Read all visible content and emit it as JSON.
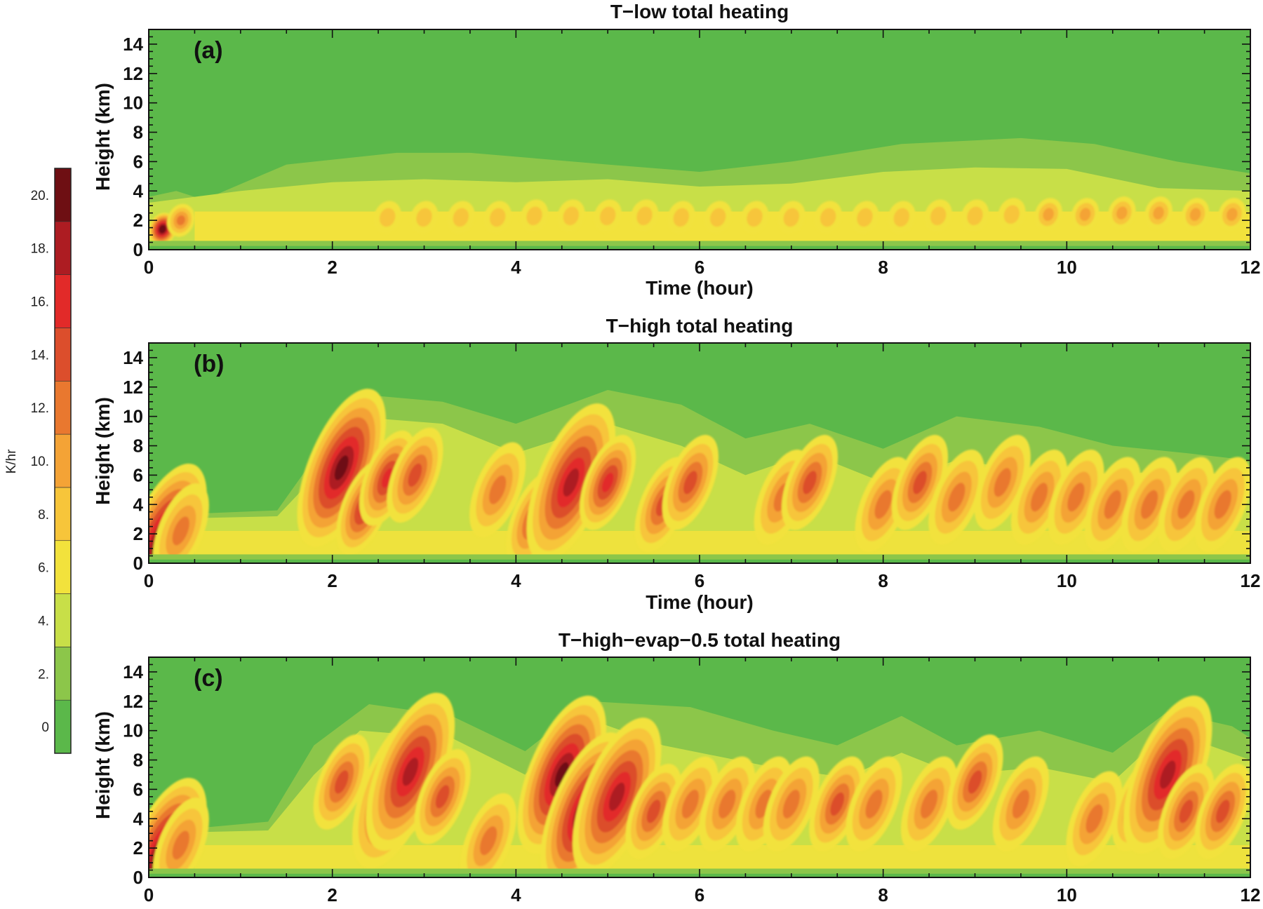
{
  "chart_data": {
    "type": "heatmap",
    "colorbar": {
      "unit": "K/hr",
      "tick_labels": [
        "0",
        "2.",
        "4.",
        "6.",
        "8.",
        "10.",
        "12.",
        "14.",
        "16.",
        "18.",
        "20."
      ],
      "levels": [
        {
          "min": -1,
          "max": 1,
          "color": "#5bb84a"
        },
        {
          "min": 1,
          "max": 3,
          "color": "#8cc64a"
        },
        {
          "min": 3,
          "max": 5,
          "color": "#c8df48"
        },
        {
          "min": 5,
          "max": 7,
          "color": "#f2e23c"
        },
        {
          "min": 7,
          "max": 9,
          "color": "#f7c53a"
        },
        {
          "min": 9,
          "max": 11,
          "color": "#f4a336"
        },
        {
          "min": 11,
          "max": 13,
          "color": "#e9782f"
        },
        {
          "min": 13,
          "max": 15,
          "color": "#dc4e2c"
        },
        {
          "min": 15,
          "max": 17,
          "color": "#e22a29"
        },
        {
          "min": 17,
          "max": 19,
          "color": "#ad1c22"
        },
        {
          "min": 19,
          "max": 21,
          "color": "#6e0f13"
        }
      ]
    },
    "panels": [
      {
        "label": "(a)",
        "title": "T−low total heating",
        "xlabel": "Time (hour)",
        "ylabel": "Height (km)",
        "xlim": [
          0,
          12
        ],
        "ylim": [
          0,
          15
        ],
        "xticks": [
          "0",
          "2",
          "4",
          "6",
          "8",
          "10",
          "12"
        ],
        "yticks": [
          "0",
          "2",
          "4",
          "6",
          "8",
          "10",
          "12",
          "14"
        ],
        "cloud_top_km": [
          [
            0,
            3.6
          ],
          [
            0.3,
            4.0
          ],
          [
            0.6,
            3.4
          ],
          [
            1.5,
            5.8
          ],
          [
            2.7,
            6.6
          ],
          [
            3.5,
            6.6
          ],
          [
            5.0,
            5.8
          ],
          [
            6.0,
            5.3
          ],
          [
            7.0,
            6.0
          ],
          [
            8.2,
            7.2
          ],
          [
            9.5,
            7.6
          ],
          [
            10.3,
            7.2
          ],
          [
            11.2,
            6.0
          ],
          [
            12,
            5.2
          ]
        ],
        "mid_layer_top_km": [
          [
            0,
            3.2
          ],
          [
            1.0,
            4.0
          ],
          [
            2.0,
            4.6
          ],
          [
            3.0,
            4.8
          ],
          [
            4.0,
            4.6
          ],
          [
            5.0,
            4.8
          ],
          [
            6.0,
            4.3
          ],
          [
            7.0,
            4.5
          ],
          [
            8.0,
            5.3
          ],
          [
            9.0,
            5.6
          ],
          [
            10.0,
            5.5
          ],
          [
            11.0,
            4.2
          ],
          [
            12,
            4.0
          ]
        ],
        "peak_cells": [
          {
            "t": 0.15,
            "z": 1.4,
            "k": 22
          },
          {
            "t": 0.35,
            "z": 2.0,
            "k": 12
          },
          {
            "t": 2.6,
            "z": 2.2,
            "k": 8
          },
          {
            "t": 3.0,
            "z": 2.2,
            "k": 8
          },
          {
            "t": 3.4,
            "z": 2.2,
            "k": 9
          },
          {
            "t": 3.8,
            "z": 2.2,
            "k": 9
          },
          {
            "t": 4.2,
            "z": 2.3,
            "k": 9
          },
          {
            "t": 4.6,
            "z": 2.3,
            "k": 9
          },
          {
            "t": 5.0,
            "z": 2.3,
            "k": 8
          },
          {
            "t": 5.4,
            "z": 2.3,
            "k": 9
          },
          {
            "t": 5.8,
            "z": 2.2,
            "k": 8
          },
          {
            "t": 6.2,
            "z": 2.2,
            "k": 8
          },
          {
            "t": 6.6,
            "z": 2.2,
            "k": 9
          },
          {
            "t": 7.0,
            "z": 2.2,
            "k": 8
          },
          {
            "t": 7.4,
            "z": 2.2,
            "k": 9
          },
          {
            "t": 7.8,
            "z": 2.2,
            "k": 8
          },
          {
            "t": 8.2,
            "z": 2.2,
            "k": 9
          },
          {
            "t": 8.6,
            "z": 2.3,
            "k": 9
          },
          {
            "t": 9.0,
            "z": 2.3,
            "k": 8
          },
          {
            "t": 9.4,
            "z": 2.4,
            "k": 9
          },
          {
            "t": 9.8,
            "z": 2.4,
            "k": 10
          },
          {
            "t": 10.2,
            "z": 2.4,
            "k": 10
          },
          {
            "t": 10.6,
            "z": 2.5,
            "k": 11
          },
          {
            "t": 11.0,
            "z": 2.5,
            "k": 11
          },
          {
            "t": 11.4,
            "z": 2.4,
            "k": 10
          },
          {
            "t": 11.8,
            "z": 2.4,
            "k": 10
          }
        ]
      },
      {
        "label": "(b)",
        "title": "T−high total heating",
        "xlabel": "Time (hour)",
        "ylabel": "Height (km)",
        "xlim": [
          0,
          12
        ],
        "ylim": [
          0,
          15
        ],
        "xticks": [
          "0",
          "2",
          "4",
          "6",
          "8",
          "10",
          "12"
        ],
        "yticks": [
          "0",
          "2",
          "4",
          "6",
          "8",
          "10",
          "12",
          "14"
        ],
        "cloud_top_km": [
          [
            0,
            3.6
          ],
          [
            0.3,
            4.0
          ],
          [
            0.6,
            3.4
          ],
          [
            1.4,
            3.6
          ],
          [
            1.9,
            8.0
          ],
          [
            2.3,
            11.5
          ],
          [
            3.2,
            11.0
          ],
          [
            4.0,
            9.5
          ],
          [
            5.0,
            11.8
          ],
          [
            5.8,
            10.8
          ],
          [
            6.5,
            8.5
          ],
          [
            7.2,
            9.5
          ],
          [
            8.0,
            7.8
          ],
          [
            8.8,
            10.0
          ],
          [
            9.7,
            9.3
          ],
          [
            10.5,
            8.0
          ],
          [
            11.3,
            7.5
          ],
          [
            12,
            7.0
          ]
        ],
        "mid_layer_top_km": [
          [
            0,
            3.0
          ],
          [
            1.4,
            3.2
          ],
          [
            1.9,
            6.5
          ],
          [
            2.2,
            10.0
          ],
          [
            3.2,
            9.5
          ],
          [
            4.0,
            7.5
          ],
          [
            5.0,
            9.5
          ],
          [
            5.8,
            8.0
          ],
          [
            6.5,
            6.0
          ],
          [
            7.2,
            7.5
          ],
          [
            8.0,
            5.5
          ],
          [
            8.8,
            7.0
          ],
          [
            10.0,
            6.0
          ],
          [
            11.0,
            6.2
          ],
          [
            12,
            6.0
          ]
        ],
        "peak_cells": [
          {
            "t": 0.15,
            "z": 1.4,
            "k": 22
          },
          {
            "t": 0.35,
            "z": 2.2,
            "k": 12
          },
          {
            "t": 2.1,
            "z": 6.5,
            "k": 21
          },
          {
            "t": 2.35,
            "z": 3.8,
            "k": 16
          },
          {
            "t": 2.6,
            "z": 5.8,
            "k": 16
          },
          {
            "t": 2.9,
            "z": 6.0,
            "k": 15
          },
          {
            "t": 3.8,
            "z": 5.0,
            "k": 12
          },
          {
            "t": 4.2,
            "z": 3.0,
            "k": 14
          },
          {
            "t": 4.6,
            "z": 5.5,
            "k": 18
          },
          {
            "t": 5.0,
            "z": 5.5,
            "k": 16
          },
          {
            "t": 5.6,
            "z": 4.0,
            "k": 14
          },
          {
            "t": 5.9,
            "z": 5.5,
            "k": 14
          },
          {
            "t": 6.9,
            "z": 4.5,
            "k": 12
          },
          {
            "t": 7.2,
            "z": 5.5,
            "k": 14
          },
          {
            "t": 8.0,
            "z": 4.0,
            "k": 12
          },
          {
            "t": 8.4,
            "z": 5.5,
            "k": 14
          },
          {
            "t": 8.8,
            "z": 4.5,
            "k": 13
          },
          {
            "t": 9.3,
            "z": 5.5,
            "k": 13
          },
          {
            "t": 9.7,
            "z": 4.5,
            "k": 12
          },
          {
            "t": 10.1,
            "z": 4.5,
            "k": 12
          },
          {
            "t": 10.5,
            "z": 4.0,
            "k": 12
          },
          {
            "t": 10.9,
            "z": 4.0,
            "k": 13
          },
          {
            "t": 11.3,
            "z": 4.0,
            "k": 13
          },
          {
            "t": 11.7,
            "z": 4.0,
            "k": 13
          }
        ]
      },
      {
        "label": "(c)",
        "title": "T−high−evap−0.5 total heating",
        "xlabel": "",
        "ylabel": "Height (km)",
        "xlim": [
          0,
          12
        ],
        "ylim": [
          0,
          15
        ],
        "xticks": [
          "0",
          "2",
          "4",
          "6",
          "8",
          "10",
          "12"
        ],
        "yticks": [
          "0",
          "2",
          "4",
          "6",
          "8",
          "10",
          "12",
          "14"
        ],
        "cloud_top_km": [
          [
            0,
            3.6
          ],
          [
            0.3,
            4.0
          ],
          [
            0.6,
            3.4
          ],
          [
            1.3,
            3.8
          ],
          [
            1.8,
            9.0
          ],
          [
            2.4,
            11.8
          ],
          [
            3.3,
            11.0
          ],
          [
            4.1,
            8.6
          ],
          [
            4.8,
            12.0
          ],
          [
            5.9,
            11.6
          ],
          [
            6.8,
            10.0
          ],
          [
            7.5,
            9.0
          ],
          [
            8.2,
            11.0
          ],
          [
            8.8,
            9.0
          ],
          [
            9.7,
            10.0
          ],
          [
            10.5,
            8.5
          ],
          [
            11.1,
            11.3
          ],
          [
            11.8,
            10.3
          ],
          [
            12,
            9.5
          ]
        ],
        "mid_layer_top_km": [
          [
            0,
            3.0
          ],
          [
            1.3,
            3.2
          ],
          [
            1.8,
            7.0
          ],
          [
            2.3,
            10.0
          ],
          [
            3.3,
            9.5
          ],
          [
            4.1,
            7.0
          ],
          [
            4.7,
            11.0
          ],
          [
            5.6,
            9.0
          ],
          [
            6.8,
            7.5
          ],
          [
            7.6,
            6.8
          ],
          [
            8.2,
            8.5
          ],
          [
            8.8,
            7.0
          ],
          [
            9.7,
            7.5
          ],
          [
            10.5,
            6.5
          ],
          [
            11.1,
            10.0
          ],
          [
            12,
            8.0
          ]
        ],
        "peak_cells": [
          {
            "t": 0.15,
            "z": 1.4,
            "k": 22
          },
          {
            "t": 0.35,
            "z": 2.2,
            "k": 12
          },
          {
            "t": 2.1,
            "z": 6.5,
            "k": 15
          },
          {
            "t": 2.7,
            "z": 6.0,
            "k": 18
          },
          {
            "t": 2.85,
            "z": 7.2,
            "k": 19
          },
          {
            "t": 3.2,
            "z": 5.5,
            "k": 14
          },
          {
            "t": 3.7,
            "z": 2.5,
            "k": 12
          },
          {
            "t": 4.5,
            "z": 7.0,
            "k": 21
          },
          {
            "t": 4.75,
            "z": 4.5,
            "k": 21
          },
          {
            "t": 5.1,
            "z": 5.5,
            "k": 19
          },
          {
            "t": 5.5,
            "z": 4.5,
            "k": 14
          },
          {
            "t": 5.9,
            "z": 5.0,
            "k": 13
          },
          {
            "t": 6.3,
            "z": 5.0,
            "k": 13
          },
          {
            "t": 6.7,
            "z": 5.0,
            "k": 13
          },
          {
            "t": 7.0,
            "z": 5.0,
            "k": 12
          },
          {
            "t": 7.5,
            "z": 5.0,
            "k": 14
          },
          {
            "t": 7.9,
            "z": 5.0,
            "k": 13
          },
          {
            "t": 8.5,
            "z": 5.0,
            "k": 12
          },
          {
            "t": 9.0,
            "z": 6.5,
            "k": 14
          },
          {
            "t": 9.5,
            "z": 5.0,
            "k": 13
          },
          {
            "t": 10.3,
            "z": 4.0,
            "k": 12
          },
          {
            "t": 10.8,
            "z": 5.0,
            "k": 15
          },
          {
            "t": 11.1,
            "z": 7.0,
            "k": 18
          },
          {
            "t": 11.3,
            "z": 4.5,
            "k": 15
          },
          {
            "t": 11.7,
            "z": 4.5,
            "k": 14
          }
        ]
      }
    ]
  }
}
